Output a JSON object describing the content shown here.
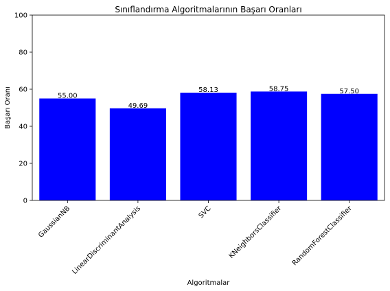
{
  "chart_data": {
    "type": "bar",
    "title": "Sınıflandırma Algoritmalarının Başarı Oranları",
    "xlabel": "Algoritmalar",
    "ylabel": "Başarı Oranı",
    "ylim": [
      0,
      100
    ],
    "yticks": [
      0,
      20,
      40,
      60,
      80,
      100
    ],
    "grid": false,
    "bar_color": "#0000ff",
    "categories": [
      "GaussianNB",
      "LinearDiscriminantAnalysis",
      "SVC",
      "KNeighborsClassifier",
      "RandomForestClassifier"
    ],
    "values": [
      55.0,
      49.69,
      58.13,
      58.75,
      57.5
    ],
    "value_labels": [
      "55.00",
      "49.69",
      "58.13",
      "58.75",
      "57.50"
    ]
  }
}
